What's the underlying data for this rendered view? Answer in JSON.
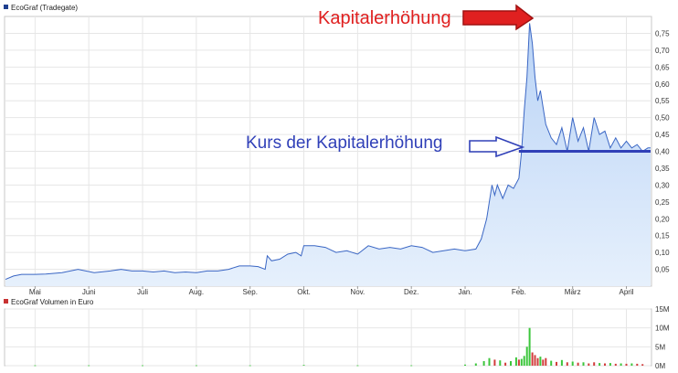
{
  "colors": {
    "price_line": "#3a66c4",
    "price_fill_top": "#b9d3f6",
    "price_fill_bottom": "#e6f0fc",
    "legend_price": "#1e3f8f",
    "legend_volume": "#c83232",
    "volume_up": "#3cc63c",
    "volume_down": "#d23c3c",
    "annotation_top": "#e02020",
    "annotation_mid": "#3040b8",
    "grid": "#e6e6e6",
    "frame": "#c8c8c8"
  },
  "chart_data": [
    {
      "type": "area",
      "legend": "EcoGraf (Tradegate)",
      "title": "",
      "xlabel": "",
      "ylabel": "",
      "ylim": [
        0,
        0.8
      ],
      "y_ticks": [
        "0,05",
        "0,10",
        "0,15",
        "0,20",
        "0,25",
        "0,30",
        "0,35",
        "0,40",
        "0,45",
        "0,50",
        "0,55",
        "0,60",
        "0,65",
        "0,70",
        "0,75"
      ],
      "y_tick_values": [
        0.05,
        0.1,
        0.15,
        0.2,
        0.25,
        0.3,
        0.35,
        0.4,
        0.45,
        0.5,
        0.55,
        0.6,
        0.65,
        0.7,
        0.75
      ],
      "x_ticks": [
        "Mai",
        "Juni",
        "Juli",
        "Aug.",
        "Sep.",
        "Okt.",
        "Nov.",
        "Dez.",
        "Jan.",
        "Feb.",
        "März",
        "April"
      ],
      "x_tick_months": [
        1,
        2,
        3,
        4,
        5,
        6,
        7,
        8,
        9,
        10,
        11,
        12
      ],
      "x_range_months": [
        0.45,
        12.45
      ],
      "grid": true,
      "legend_position": "top-left",
      "series": [
        {
          "name": "EcoGraf (Tradegate)",
          "x": [
            0.45,
            0.6,
            0.75,
            1.0,
            1.2,
            1.5,
            1.8,
            2.1,
            2.4,
            2.6,
            2.8,
            3.0,
            3.2,
            3.4,
            3.6,
            3.8,
            4.0,
            4.2,
            4.4,
            4.6,
            4.8,
            5.0,
            5.15,
            5.28,
            5.32,
            5.4,
            5.55,
            5.7,
            5.85,
            5.95,
            6.0,
            6.2,
            6.4,
            6.6,
            6.8,
            7.0,
            7.2,
            7.4,
            7.6,
            7.8,
            8.0,
            8.2,
            8.4,
            8.6,
            8.8,
            9.0,
            9.2,
            9.3,
            9.4,
            9.5,
            9.55,
            9.6,
            9.7,
            9.8,
            9.9,
            10.0,
            10.05,
            10.1,
            10.15,
            10.2,
            10.25,
            10.3,
            10.35,
            10.4,
            10.5,
            10.6,
            10.7,
            10.8,
            10.9,
            11.0,
            11.1,
            11.2,
            11.3,
            11.4,
            11.5,
            11.6,
            11.7,
            11.8,
            11.9,
            12.0,
            12.1,
            12.2,
            12.3,
            12.4,
            12.45
          ],
          "values": [
            0.02,
            0.03,
            0.035,
            0.035,
            0.036,
            0.04,
            0.05,
            0.04,
            0.045,
            0.05,
            0.045,
            0.045,
            0.042,
            0.045,
            0.04,
            0.042,
            0.04,
            0.045,
            0.045,
            0.05,
            0.06,
            0.06,
            0.058,
            0.05,
            0.09,
            0.075,
            0.08,
            0.095,
            0.1,
            0.09,
            0.12,
            0.12,
            0.115,
            0.1,
            0.105,
            0.095,
            0.12,
            0.11,
            0.115,
            0.11,
            0.12,
            0.115,
            0.1,
            0.105,
            0.11,
            0.105,
            0.11,
            0.14,
            0.2,
            0.3,
            0.27,
            0.3,
            0.26,
            0.3,
            0.29,
            0.32,
            0.4,
            0.52,
            0.62,
            0.78,
            0.72,
            0.62,
            0.55,
            0.58,
            0.48,
            0.44,
            0.42,
            0.47,
            0.4,
            0.5,
            0.43,
            0.47,
            0.4,
            0.5,
            0.45,
            0.46,
            0.41,
            0.44,
            0.41,
            0.43,
            0.41,
            0.42,
            0.4,
            0.41,
            0.41
          ]
        }
      ],
      "annotations": [
        {
          "text": "Kapitalerhöhung",
          "arrow_to_month": 10.15,
          "arrow_to_value": 0.78
        },
        {
          "text": "Kurs der Kapitalerhöhung",
          "arrow_to_month": 10.0,
          "arrow_to_value": 0.4,
          "reference_line_value": 0.4
        }
      ]
    },
    {
      "type": "bar",
      "legend": "EcoGraf Volumen in Euro",
      "title": "",
      "ylim": [
        0,
        15
      ],
      "y_unit": "M",
      "y_ticks": [
        "0M",
        "5M",
        "10M",
        "15M"
      ],
      "y_tick_values": [
        0,
        5,
        10,
        15
      ],
      "grid": true,
      "legend_position": "top-left",
      "series": [
        {
          "name": "EcoGraf Volumen in Euro",
          "x": [
            1.0,
            2.0,
            3.0,
            4.0,
            5.0,
            6.0,
            7.0,
            8.0,
            9.0,
            9.2,
            9.35,
            9.45,
            9.55,
            9.65,
            9.75,
            9.85,
            9.95,
            10.0,
            10.05,
            10.1,
            10.15,
            10.2,
            10.25,
            10.3,
            10.35,
            10.4,
            10.45,
            10.5,
            10.6,
            10.7,
            10.8,
            10.9,
            11.0,
            11.1,
            11.2,
            11.3,
            11.4,
            11.5,
            11.6,
            11.7,
            11.8,
            11.9,
            12.0,
            12.1,
            12.2,
            12.3
          ],
          "values": [
            0.1,
            0.1,
            0.1,
            0.1,
            0.1,
            0.2,
            0.1,
            0.1,
            0.3,
            0.6,
            1.2,
            2.0,
            1.6,
            1.4,
            0.8,
            1.2,
            2.2,
            1.6,
            1.8,
            2.6,
            5.0,
            10.0,
            3.5,
            2.8,
            2.0,
            2.4,
            1.6,
            2.0,
            1.3,
            1.0,
            1.5,
            0.9,
            1.1,
            0.8,
            0.9,
            0.6,
            0.9,
            0.7,
            0.6,
            0.7,
            0.5,
            0.6,
            0.5,
            0.6,
            0.5,
            0.4
          ],
          "direction": [
            "up",
            "up",
            "up",
            "up",
            "up",
            "up",
            "up",
            "up",
            "up",
            "up",
            "up",
            "up",
            "down",
            "up",
            "down",
            "up",
            "up",
            "down",
            "up",
            "up",
            "up",
            "up",
            "down",
            "down",
            "down",
            "up",
            "down",
            "down",
            "up",
            "down",
            "up",
            "down",
            "up",
            "down",
            "up",
            "down",
            "down",
            "up",
            "down",
            "up",
            "down",
            "up",
            "down",
            "up",
            "down",
            "down"
          ]
        }
      ]
    }
  ]
}
